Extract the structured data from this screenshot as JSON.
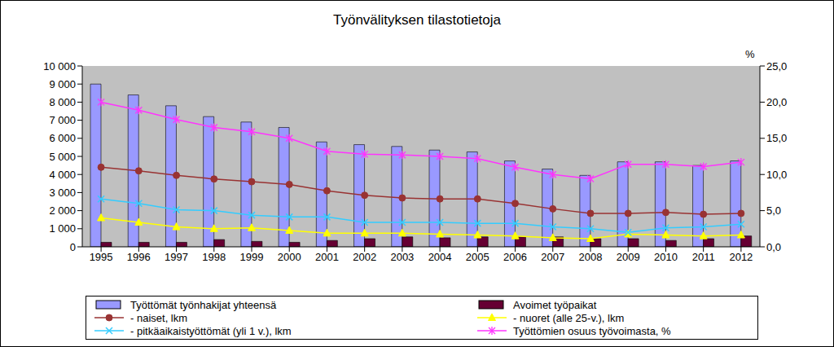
{
  "chart_data": {
    "type": "bar",
    "title": "Työnvälityksen tilastotietoja",
    "y2_label": "%",
    "categories": [
      "1995",
      "1996",
      "1997",
      "1998",
      "1999",
      "2000",
      "2001",
      "2002",
      "2003",
      "2004",
      "2005",
      "2006",
      "2007",
      "2008",
      "2009",
      "2010",
      "2011",
      "2012"
    ],
    "series": [
      {
        "name": "Työttömät työnhakijat yhteensä",
        "type": "bar",
        "color": "#9999ff",
        "values": [
          9000,
          8400,
          7800,
          7200,
          6900,
          6600,
          5800,
          5650,
          5550,
          5350,
          5250,
          4750,
          4300,
          3950,
          4700,
          4700,
          4500,
          4750
        ]
      },
      {
        "name": "Avoimet työpaikat",
        "type": "bar",
        "color": "#660033",
        "values": [
          250,
          250,
          250,
          400,
          300,
          250,
          350,
          450,
          550,
          500,
          550,
          550,
          550,
          450,
          450,
          350,
          450,
          600
        ]
      },
      {
        "name": "- naiset, lkm",
        "type": "line",
        "color": "#993333",
        "marker": "circle",
        "values": [
          4400,
          4200,
          3950,
          3750,
          3600,
          3450,
          3100,
          2850,
          2700,
          2650,
          2650,
          2400,
          2100,
          1850,
          1850,
          1900,
          1800,
          1850
        ]
      },
      {
        "name": "- nuoret (alle 25-v.), lkm",
        "type": "line",
        "color": "#ffff00",
        "marker": "triangle",
        "values": [
          1600,
          1350,
          1100,
          1000,
          1050,
          900,
          750,
          750,
          750,
          700,
          650,
          600,
          500,
          450,
          700,
          650,
          600,
          650
        ]
      },
      {
        "name": "- pitkäaikaistyöttömät (yli 1 v.), lkm",
        "type": "line",
        "color": "#33ccff",
        "marker": "x",
        "values": [
          2650,
          2400,
          2050,
          2000,
          1750,
          1650,
          1650,
          1350,
          1350,
          1350,
          1300,
          1300,
          1100,
          1000,
          800,
          1050,
          1100,
          1250
        ]
      },
      {
        "name": "Työttömien osuus työvoimasta, %",
        "type": "line",
        "color": "#ff33ff",
        "marker": "star",
        "axis": "y2",
        "values": [
          20.0,
          18.9,
          17.6,
          16.5,
          15.9,
          15.0,
          13.2,
          12.8,
          12.7,
          12.5,
          12.2,
          11.0,
          10.0,
          9.4,
          11.4,
          11.4,
          11.1,
          11.7
        ]
      }
    ],
    "ylim": [
      0,
      10000
    ],
    "yticks": [
      0,
      {
        "value": 1000,
        "label": "1 000"
      },
      {
        "value": 2000,
        "label": "2 000"
      },
      {
        "value": 3000,
        "label": "3 000"
      },
      {
        "value": 4000,
        "label": "4 000"
      },
      {
        "value": 5000,
        "label": "5 000"
      },
      {
        "value": 6000,
        "label": "6 000"
      },
      {
        "value": 7000,
        "label": "7 000"
      },
      {
        "value": 8000,
        "label": "8 000"
      },
      {
        "value": 9000,
        "label": "9 000"
      },
      {
        "value": 10000,
        "label": "10 000"
      }
    ],
    "y2lim": [
      0,
      25
    ],
    "y2ticks": [
      {
        "value": 0,
        "label": "0,0"
      },
      {
        "value": 5,
        "label": "5,0"
      },
      {
        "value": 10,
        "label": "10,0"
      },
      {
        "value": 15,
        "label": "15,0"
      },
      {
        "value": 20,
        "label": "20,0"
      },
      {
        "value": 25,
        "label": "25,0"
      }
    ],
    "grid": false,
    "legend": "bottom"
  }
}
